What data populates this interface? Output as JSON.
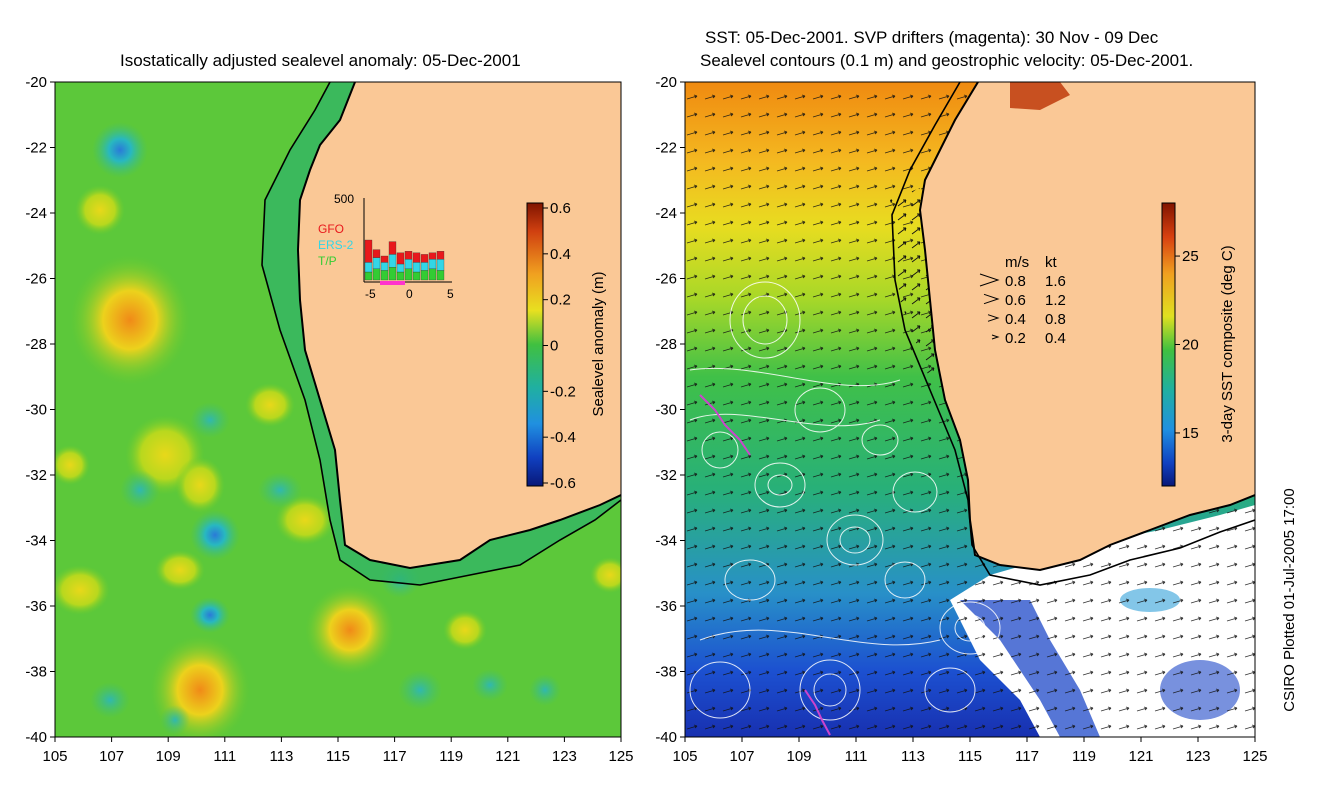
{
  "left_panel": {
    "title": "Isostatically adjusted sealevel anomaly: 05-Dec-2001",
    "y_ticks": [
      "-20",
      "-22",
      "-24",
      "-26",
      "-28",
      "-30",
      "-32",
      "-34",
      "-36",
      "-38",
      "-40"
    ],
    "x_ticks": [
      "105",
      "107",
      "109",
      "111",
      "113",
      "115",
      "117",
      "119",
      "121",
      "123",
      "125"
    ],
    "colorbar": {
      "label": "Sealevel anomaly (m)",
      "ticks": [
        "0.6",
        "0.4",
        "0.2",
        "0",
        "-0.2",
        "-0.4",
        "-0.6"
      ],
      "range": [
        -0.6,
        0.6
      ]
    },
    "inset": {
      "top_label": "500",
      "legend": [
        {
          "name": "GFO",
          "color": "#e8181c"
        },
        {
          "name": "ERS-2",
          "color": "#33d6e6"
        },
        {
          "name": "T/P",
          "color": "#33cc33"
        }
      ],
      "x_ticks": [
        "-5",
        "0",
        "5"
      ],
      "bars": [
        {
          "tp": 0.1,
          "ers": 0.12,
          "gfo": 0.28
        },
        {
          "tp": 0.14,
          "ers": 0.14,
          "gfo": 0.1
        },
        {
          "tp": 0.12,
          "ers": 0.1,
          "gfo": 0.08
        },
        {
          "tp": 0.16,
          "ers": 0.16,
          "gfo": 0.16
        },
        {
          "tp": 0.1,
          "ers": 0.1,
          "gfo": 0.14
        },
        {
          "tp": 0.14,
          "ers": 0.12,
          "gfo": 0.1
        },
        {
          "tp": 0.1,
          "ers": 0.12,
          "gfo": 0.12
        },
        {
          "tp": 0.12,
          "ers": 0.1,
          "gfo": 0.1
        },
        {
          "tp": 0.14,
          "ers": 0.12,
          "gfo": 0.08
        },
        {
          "tp": 0.12,
          "ers": 0.14,
          "gfo": 0.1
        }
      ]
    }
  },
  "right_panel": {
    "title_line1": "SST: 05-Dec-2001. SVP drifters (magenta): 30 Nov - 09 Dec",
    "title_line2": "Sealevel contours (0.1 m) and geostrophic velocity: 05-Dec-2001.",
    "y_ticks": [
      "-20",
      "-22",
      "-24",
      "-26",
      "-28",
      "-30",
      "-32",
      "-34",
      "-36",
      "-38",
      "-40"
    ],
    "x_ticks": [
      "105",
      "107",
      "109",
      "111",
      "113",
      "115",
      "117",
      "119",
      "121",
      "123",
      "125"
    ],
    "colorbar": {
      "label": "3-day SST composite (deg C)",
      "ticks": [
        "25",
        "20",
        "15"
      ],
      "range": [
        12,
        28
      ]
    },
    "speed_key": {
      "header_ms": "m/s",
      "header_kt": "kt",
      "rows": [
        {
          "ms": "0.8",
          "kt": "1.6"
        },
        {
          "ms": "0.6",
          "kt": "1.2"
        },
        {
          "ms": "0.4",
          "kt": "0.8"
        },
        {
          "ms": "0.2",
          "kt": "0.4"
        }
      ]
    }
  },
  "footer": {
    "credit": "CSIRO Plotted 01-Jul-2005 17:00"
  },
  "colors": {
    "land": "#fac896",
    "coast": "#000000"
  }
}
